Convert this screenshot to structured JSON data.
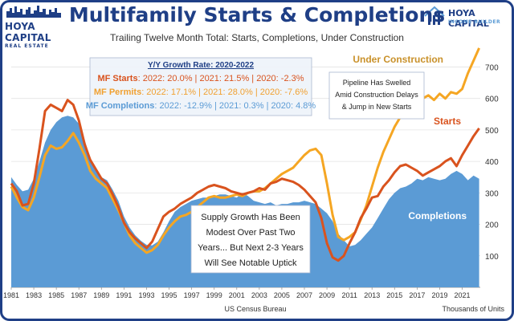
{
  "header": {
    "title": "Multifamily Starts & Completions",
    "subtitle": "Trailing Twelve Month Total: Starts, Completions, Under Construction"
  },
  "logos": {
    "left_name": "HOYA CAPITAL",
    "left_sub": "REAL ESTATE",
    "right_name": "HOYA CAPITAL",
    "right_sub": "INCOME BUILDER"
  },
  "growth_box": {
    "heading": "Y/Y Growth Rate: 2020-2022",
    "rows": [
      {
        "label": "MF Starts",
        "text": ": 2022: 20.0% | 2021: 21.5% |  2020: -2.3%",
        "color": "#d9531e"
      },
      {
        "label": "MF Permits",
        "text": ": 2022: 17.1% | 2021: 28.0% |  2020: -7.6%",
        "color": "#f0a030"
      },
      {
        "label": "MF Completions",
        "text": ": 2022: -12.9% | 2021: 0.3% |  2020: 4.8%",
        "color": "#5b9bd5"
      }
    ]
  },
  "annotations": {
    "pipeline": [
      "Pipeline Has Swelled",
      "Amid Construction Delays",
      "& Jump in New Starts"
    ],
    "supply": [
      "Supply Growth Has Been",
      "Modest Over Past Two",
      "Years... But Next 2-3 Years",
      "Will See Notable Uptick"
    ],
    "label_under_construction": "Under Construction",
    "label_starts": "Starts",
    "label_completions": "Completions"
  },
  "footer": {
    "source": "US Census Bureau",
    "units": "Thousands of Units"
  },
  "colors": {
    "completions": "#5b9bd5",
    "starts": "#d9531e",
    "under_construction": "#f5a623",
    "title": "#1f3f86",
    "frame": "#1f3f86"
  },
  "chart_data": {
    "type": "area",
    "x_tick_labels": [
      "1981",
      "1983",
      "1985",
      "1987",
      "1989",
      "1991",
      "1993",
      "1995",
      "1997",
      "1999",
      "2001",
      "2003",
      "2005",
      "2007",
      "2009",
      "2011",
      "2013",
      "2015",
      "2017",
      "2019",
      "2021"
    ],
    "y_tick_labels": [
      "100",
      "200",
      "300",
      "400",
      "500",
      "600",
      "700"
    ],
    "ylim": [
      0,
      770
    ],
    "xlim": [
      1981,
      2022.6
    ],
    "grid": true,
    "series": [
      {
        "name": "Completions",
        "style": "area",
        "points": [
          [
            1981,
            350
          ],
          [
            1981.5,
            325
          ],
          [
            1982,
            305
          ],
          [
            1982.5,
            310
          ],
          [
            1983,
            345
          ],
          [
            1983.5,
            400
          ],
          [
            1984,
            460
          ],
          [
            1984.5,
            500
          ],
          [
            1985,
            525
          ],
          [
            1985.5,
            540
          ],
          [
            1986,
            545
          ],
          [
            1986.5,
            540
          ],
          [
            1987,
            520
          ],
          [
            1987.5,
            470
          ],
          [
            1988,
            410
          ],
          [
            1988.5,
            380
          ],
          [
            1989,
            350
          ],
          [
            1989.5,
            340
          ],
          [
            1990,
            310
          ],
          [
            1990.5,
            275
          ],
          [
            1991,
            225
          ],
          [
            1991.5,
            190
          ],
          [
            1992,
            165
          ],
          [
            1992.5,
            148
          ],
          [
            1993,
            135
          ],
          [
            1993.5,
            133
          ],
          [
            1994,
            145
          ],
          [
            1994.5,
            175
          ],
          [
            1995,
            210
          ],
          [
            1995.5,
            240
          ],
          [
            1996,
            255
          ],
          [
            1996.5,
            265
          ],
          [
            1997,
            275
          ],
          [
            1997.5,
            280
          ],
          [
            1998,
            285
          ],
          [
            1998.5,
            285
          ],
          [
            1999,
            290
          ],
          [
            1999.5,
            295
          ],
          [
            2000,
            295
          ],
          [
            2000.5,
            290
          ],
          [
            2001,
            285
          ],
          [
            2001.5,
            300
          ],
          [
            2002,
            290
          ],
          [
            2002.5,
            275
          ],
          [
            2003,
            270
          ],
          [
            2003.5,
            265
          ],
          [
            2004,
            270
          ],
          [
            2004.5,
            260
          ],
          [
            2005,
            265
          ],
          [
            2005.5,
            265
          ],
          [
            2006,
            270
          ],
          [
            2006.5,
            270
          ],
          [
            2007,
            275
          ],
          [
            2007.5,
            270
          ],
          [
            2008,
            265
          ],
          [
            2008.5,
            250
          ],
          [
            2009,
            235
          ],
          [
            2009.5,
            210
          ],
          [
            2010,
            170
          ],
          [
            2010.5,
            150
          ],
          [
            2011,
            130
          ],
          [
            2011.5,
            135
          ],
          [
            2012,
            150
          ],
          [
            2012.5,
            170
          ],
          [
            2013,
            190
          ],
          [
            2013.5,
            220
          ],
          [
            2014,
            250
          ],
          [
            2014.5,
            280
          ],
          [
            2015,
            300
          ],
          [
            2015.5,
            315
          ],
          [
            2016,
            320
          ],
          [
            2016.5,
            330
          ],
          [
            2017,
            345
          ],
          [
            2017.5,
            340
          ],
          [
            2018,
            350
          ],
          [
            2018.5,
            345
          ],
          [
            2019,
            340
          ],
          [
            2019.5,
            345
          ],
          [
            2020,
            360
          ],
          [
            2020.5,
            370
          ],
          [
            2021,
            360
          ],
          [
            2021.5,
            340
          ],
          [
            2022,
            355
          ],
          [
            2022.5,
            345
          ]
        ]
      },
      {
        "name": "Under Construction",
        "style": "line",
        "points": [
          [
            1981,
            320
          ],
          [
            1981.5,
            285
          ],
          [
            1982,
            255
          ],
          [
            1982.5,
            245
          ],
          [
            1983,
            285
          ],
          [
            1983.5,
            350
          ],
          [
            1984,
            420
          ],
          [
            1984.5,
            450
          ],
          [
            1985,
            440
          ],
          [
            1985.5,
            445
          ],
          [
            1986,
            465
          ],
          [
            1986.5,
            490
          ],
          [
            1987,
            460
          ],
          [
            1987.5,
            420
          ],
          [
            1988,
            370
          ],
          [
            1988.5,
            345
          ],
          [
            1989,
            330
          ],
          [
            1989.5,
            315
          ],
          [
            1990,
            280
          ],
          [
            1990.5,
            245
          ],
          [
            1991,
            205
          ],
          [
            1991.5,
            165
          ],
          [
            1992,
            140
          ],
          [
            1992.5,
            125
          ],
          [
            1993,
            110
          ],
          [
            1993.5,
            118
          ],
          [
            1994,
            135
          ],
          [
            1994.5,
            165
          ],
          [
            1995,
            190
          ],
          [
            1995.5,
            210
          ],
          [
            1996,
            225
          ],
          [
            1996.5,
            230
          ],
          [
            1997,
            240
          ],
          [
            1997.5,
            255
          ],
          [
            1998,
            270
          ],
          [
            1998.5,
            285
          ],
          [
            1999,
            290
          ],
          [
            1999.5,
            285
          ],
          [
            2000,
            285
          ],
          [
            2000.5,
            290
          ],
          [
            2001,
            295
          ],
          [
            2001.5,
            290
          ],
          [
            2002,
            300
          ],
          [
            2002.5,
            305
          ],
          [
            2003,
            305
          ],
          [
            2003.5,
            315
          ],
          [
            2004,
            330
          ],
          [
            2004.5,
            345
          ],
          [
            2005,
            360
          ],
          [
            2005.5,
            370
          ],
          [
            2006,
            380
          ],
          [
            2006.5,
            400
          ],
          [
            2007,
            420
          ],
          [
            2007.5,
            435
          ],
          [
            2008,
            440
          ],
          [
            2008.5,
            420
          ],
          [
            2009,
            330
          ],
          [
            2009.5,
            230
          ],
          [
            2010,
            160
          ],
          [
            2010.5,
            150
          ],
          [
            2011,
            160
          ],
          [
            2011.5,
            175
          ],
          [
            2012,
            215
          ],
          [
            2012.5,
            260
          ],
          [
            2013,
            320
          ],
          [
            2013.5,
            380
          ],
          [
            2014,
            430
          ],
          [
            2014.5,
            470
          ],
          [
            2015,
            510
          ],
          [
            2015.5,
            540
          ],
          [
            2016,
            575
          ],
          [
            2016.5,
            590
          ],
          [
            2017,
            595
          ],
          [
            2017.5,
            600
          ],
          [
            2018,
            610
          ],
          [
            2018.5,
            595
          ],
          [
            2019,
            615
          ],
          [
            2019.5,
            600
          ],
          [
            2020,
            620
          ],
          [
            2020.5,
            615
          ],
          [
            2021,
            630
          ],
          [
            2021.5,
            680
          ],
          [
            2022,
            720
          ],
          [
            2022.5,
            760
          ]
        ]
      },
      {
        "name": "Starts",
        "style": "line",
        "points": [
          [
            1981,
            330
          ],
          [
            1981.5,
            305
          ],
          [
            1982,
            260
          ],
          [
            1982.5,
            265
          ],
          [
            1983,
            330
          ],
          [
            1983.5,
            440
          ],
          [
            1984,
            560
          ],
          [
            1984.5,
            580
          ],
          [
            1985,
            570
          ],
          [
            1985.5,
            560
          ],
          [
            1986,
            595
          ],
          [
            1986.5,
            580
          ],
          [
            1987,
            530
          ],
          [
            1987.5,
            455
          ],
          [
            1988,
            405
          ],
          [
            1988.5,
            375
          ],
          [
            1989,
            345
          ],
          [
            1989.5,
            330
          ],
          [
            1990,
            295
          ],
          [
            1990.5,
            255
          ],
          [
            1991,
            205
          ],
          [
            1991.5,
            175
          ],
          [
            1992,
            155
          ],
          [
            1992.5,
            140
          ],
          [
            1993,
            125
          ],
          [
            1993.5,
            145
          ],
          [
            1994,
            185
          ],
          [
            1994.5,
            225
          ],
          [
            1995,
            240
          ],
          [
            1995.5,
            250
          ],
          [
            1996,
            265
          ],
          [
            1996.5,
            275
          ],
          [
            1997,
            285
          ],
          [
            1997.5,
            300
          ],
          [
            1998,
            310
          ],
          [
            1998.5,
            320
          ],
          [
            1999,
            325
          ],
          [
            1999.5,
            320
          ],
          [
            2000,
            315
          ],
          [
            2000.5,
            305
          ],
          [
            2001,
            300
          ],
          [
            2001.5,
            295
          ],
          [
            2002,
            300
          ],
          [
            2002.5,
            305
          ],
          [
            2003,
            315
          ],
          [
            2003.5,
            310
          ],
          [
            2004,
            330
          ],
          [
            2004.5,
            335
          ],
          [
            2005,
            345
          ],
          [
            2005.5,
            340
          ],
          [
            2006,
            335
          ],
          [
            2006.5,
            325
          ],
          [
            2007,
            310
          ],
          [
            2007.5,
            290
          ],
          [
            2008,
            270
          ],
          [
            2008.5,
            220
          ],
          [
            2009,
            140
          ],
          [
            2009.5,
            95
          ],
          [
            2010,
            85
          ],
          [
            2010.5,
            100
          ],
          [
            2011,
            140
          ],
          [
            2011.5,
            175
          ],
          [
            2012,
            220
          ],
          [
            2012.5,
            250
          ],
          [
            2013,
            285
          ],
          [
            2013.5,
            290
          ],
          [
            2014,
            320
          ],
          [
            2014.5,
            340
          ],
          [
            2015,
            365
          ],
          [
            2015.5,
            385
          ],
          [
            2016,
            390
          ],
          [
            2016.5,
            380
          ],
          [
            2017,
            370
          ],
          [
            2017.5,
            355
          ],
          [
            2018,
            365
          ],
          [
            2018.5,
            375
          ],
          [
            2019,
            385
          ],
          [
            2019.5,
            400
          ],
          [
            2020,
            410
          ],
          [
            2020.5,
            385
          ],
          [
            2021,
            420
          ],
          [
            2021.5,
            450
          ],
          [
            2022,
            480
          ],
          [
            2022.5,
            505
          ]
        ]
      }
    ]
  }
}
